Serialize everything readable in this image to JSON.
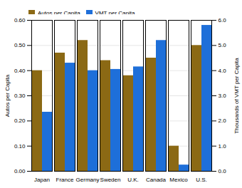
{
  "chart_data": {
    "type": "bar",
    "categories": [
      "Japan",
      "France",
      "Germany",
      "Sweden",
      "U.K.",
      "Canada",
      "Mexico",
      "U.S."
    ],
    "series": [
      {
        "name": "Autos per Capita",
        "color": "#8B6914",
        "values": [
          0.4,
          0.47,
          0.52,
          0.44,
          0.38,
          0.45,
          0.1,
          0.5
        ]
      },
      {
        "name": "VMT per Capita",
        "color": "#1E6FD9",
        "axis": "y2",
        "values": [
          2.35,
          4.3,
          4.0,
          4.05,
          4.15,
          5.2,
          0.25,
          5.8
        ]
      }
    ],
    "ylabel": "Autos per Capita",
    "y2label": "Thousands of VMT per Capita",
    "ylim": [
      0,
      0.6
    ],
    "yticks": [
      0,
      0.1,
      0.2,
      0.3,
      0.4,
      0.5,
      0.6
    ],
    "y2lim": [
      0,
      6
    ],
    "y2ticks": [
      0,
      1,
      2,
      3,
      4,
      5,
      6
    ],
    "grid": true,
    "legend": "upper left"
  }
}
